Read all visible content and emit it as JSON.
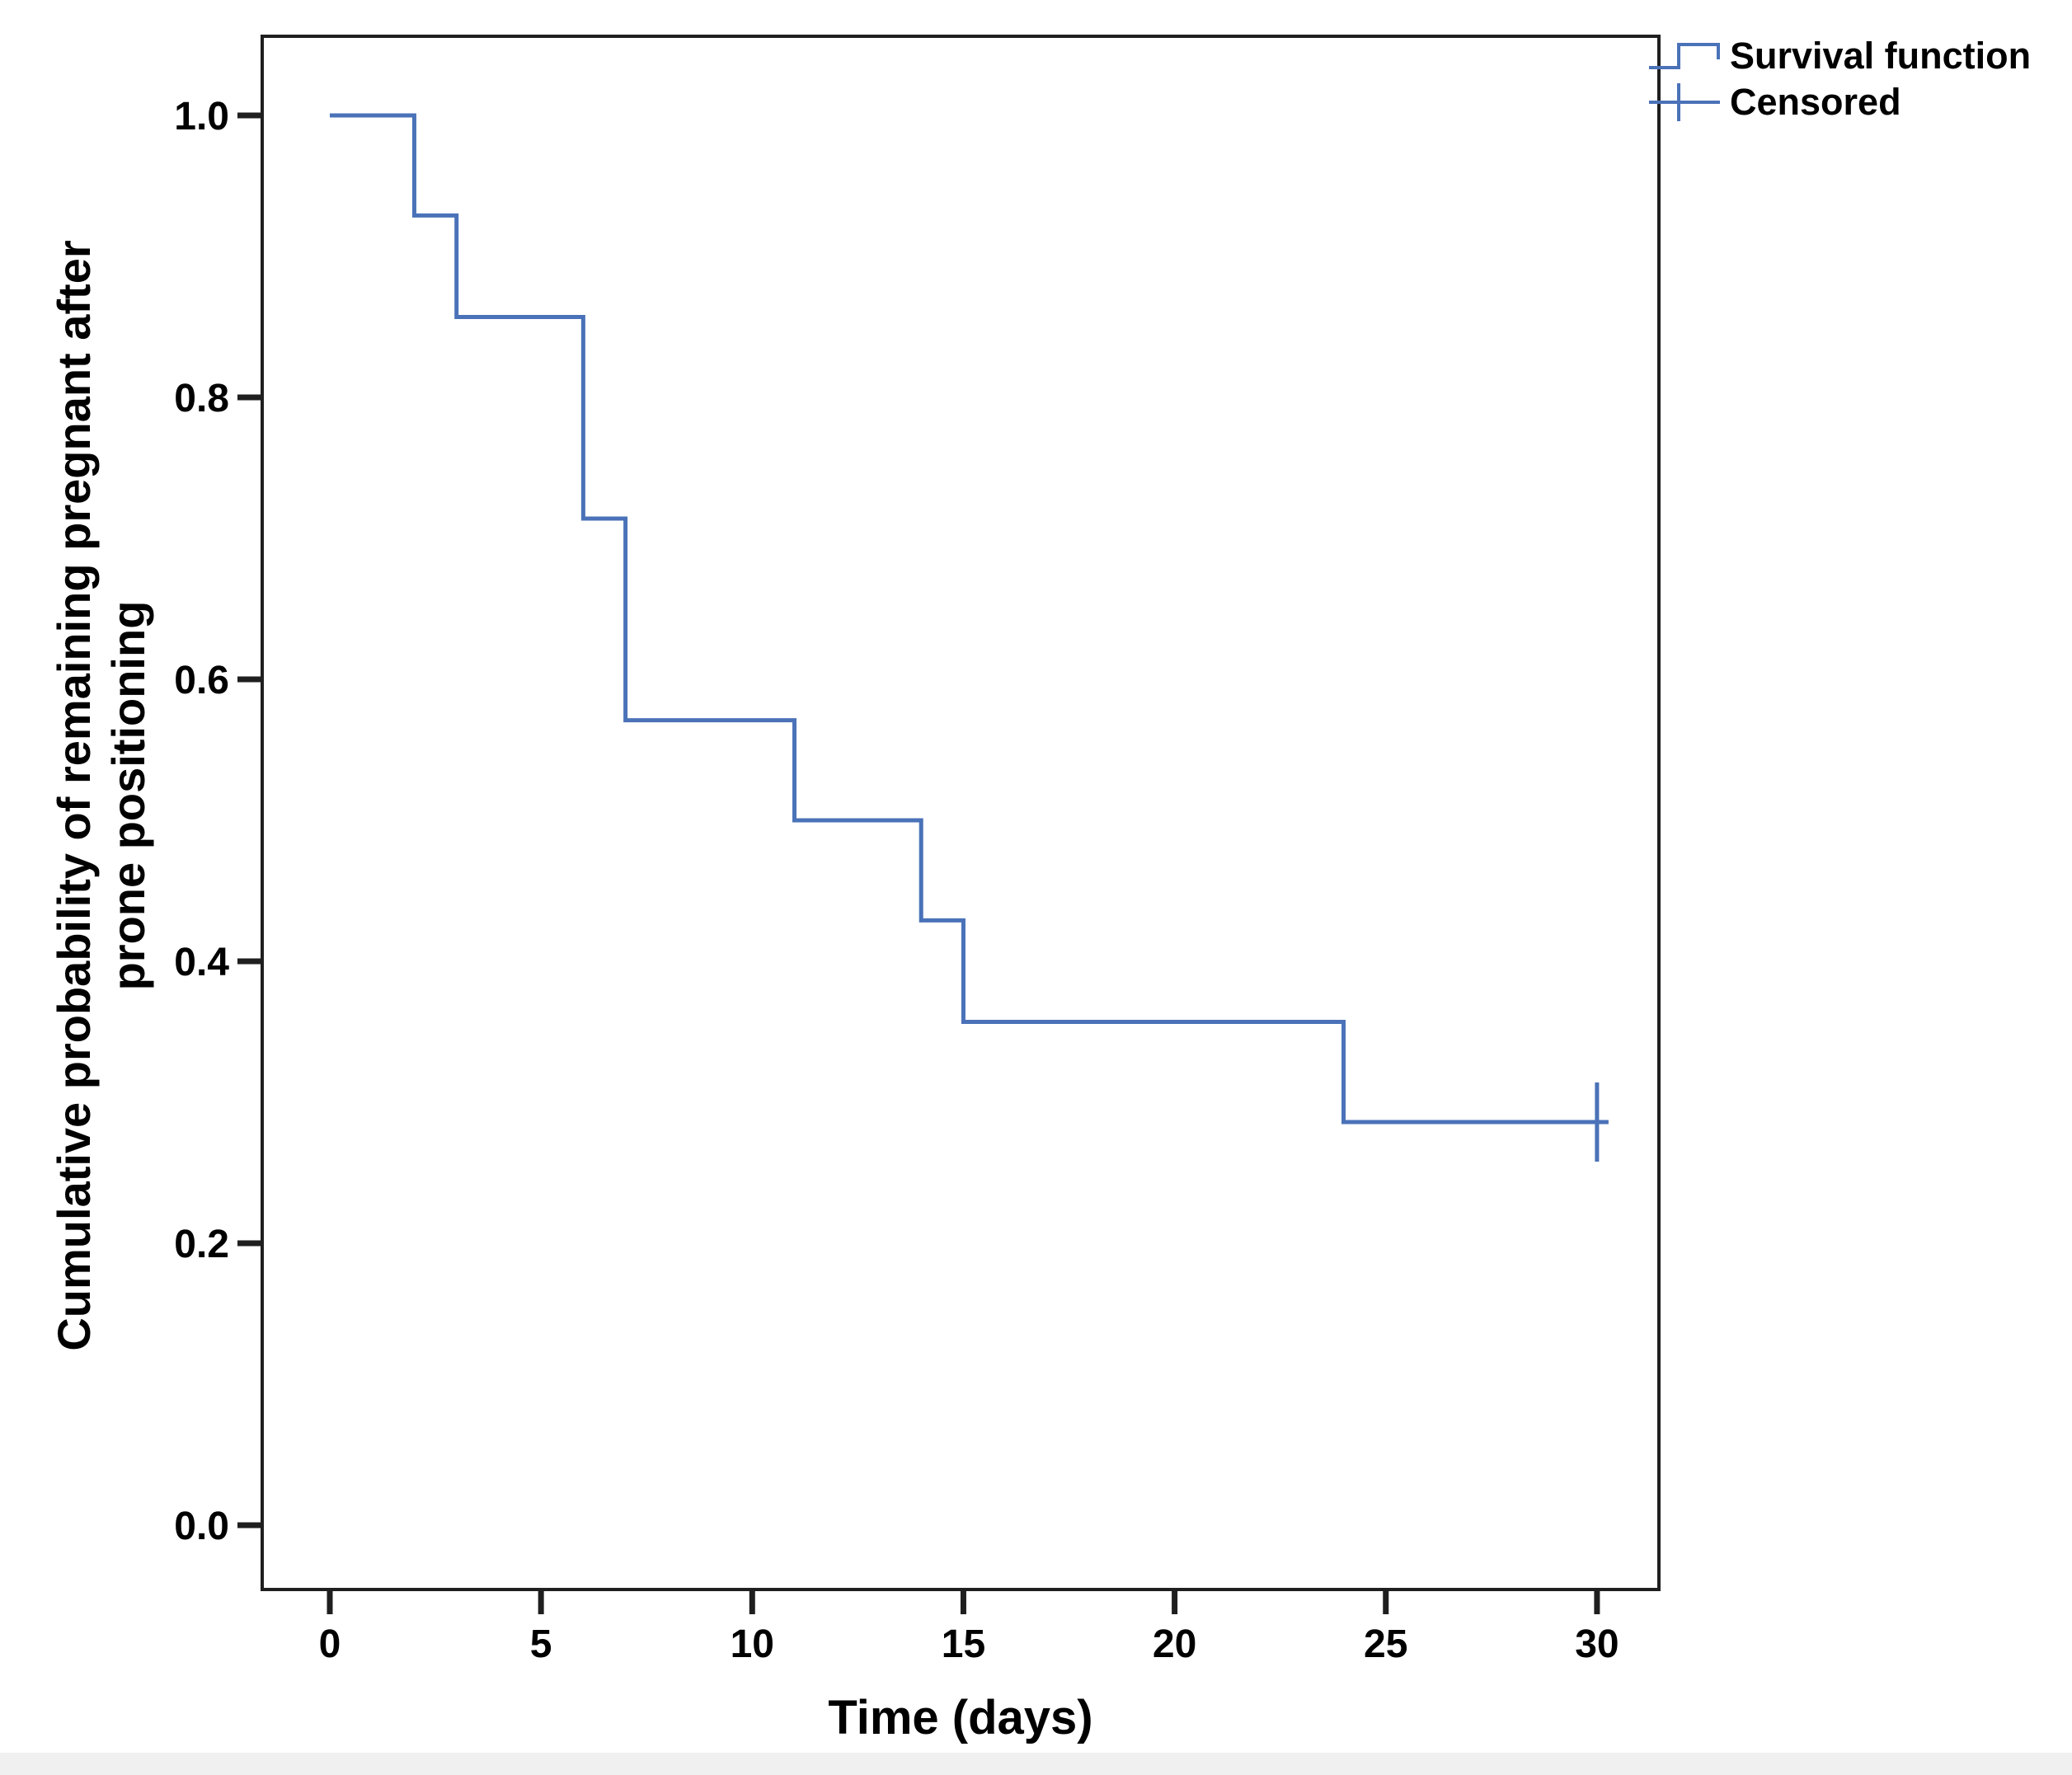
{
  "chart_data": {
    "type": "line",
    "subtype": "kaplan-meier-step",
    "xlabel": "Time (days)",
    "ylabel_line1": "Cumulative probability of remaining pregnant after",
    "ylabel_line2": "prone positioning",
    "x_ticks": [
      0,
      5,
      10,
      15,
      20,
      25,
      30
    ],
    "x_tick_labels": [
      "0",
      "5",
      "10",
      "15",
      "20",
      "25",
      "30"
    ],
    "y_ticks": [
      0.0,
      0.2,
      0.4,
      0.6,
      0.8,
      1.0
    ],
    "y_tick_labels": [
      "0.0",
      "0.2",
      "0.4",
      "0.6",
      "0.8",
      "1.0"
    ],
    "xlim": [
      -1.6,
      31.5
    ],
    "ylim": [
      -0.046,
      1.062
    ],
    "grid": false,
    "legend_position": "top-right-outside",
    "series": [
      {
        "name": "Survival function",
        "points": [
          [
            0,
            1.0
          ],
          [
            2,
            0.929
          ],
          [
            3,
            0.857
          ],
          [
            6,
            0.714
          ],
          [
            7,
            0.571
          ],
          [
            11,
            0.5
          ],
          [
            14,
            0.429
          ],
          [
            15,
            0.357
          ],
          [
            24,
            0.286
          ],
          [
            30,
            0.286
          ]
        ]
      }
    ],
    "censored_points": [
      [
        30,
        0.286
      ]
    ],
    "legend": [
      {
        "label": "Survival function",
        "symbol": "step-line"
      },
      {
        "label": "Censored",
        "symbol": "plus-on-line"
      }
    ],
    "line_color": "#4a72b8",
    "axis_color": "#1f1f1f",
    "text_color": "#000000"
  }
}
